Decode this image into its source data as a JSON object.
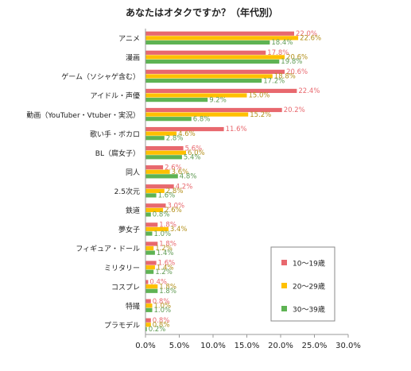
{
  "chart_data": {
    "type": "bar",
    "orientation": "horizontal",
    "title": "あなたはオタクですか？（年代別）",
    "categories": [
      "アニメ",
      "漫画",
      "ゲーム（ソシャゲ含む）",
      "アイドル・声優",
      "動画（YouTuber・Vtuber・実況）",
      "歌い手・ボカロ",
      "BL（腐女子）",
      "同人",
      "2.5次元",
      "鉄道",
      "夢女子",
      "フィギュア・ドール",
      "ミリタリー",
      "コスプレ",
      "特撮",
      "プラモデル"
    ],
    "series": [
      {
        "name": "10～19歳",
        "color": "#e8686e",
        "values": [
          22.0,
          17.8,
          20.6,
          22.4,
          20.2,
          11.6,
          5.6,
          2.6,
          4.2,
          3.0,
          1.8,
          1.8,
          1.6,
          0.4,
          0.8,
          0.8
        ]
      },
      {
        "name": "20～29歳",
        "color": "#ffc000",
        "values": [
          22.6,
          20.6,
          18.8,
          15.0,
          15.2,
          4.6,
          6.0,
          3.6,
          2.8,
          2.6,
          3.4,
          1.2,
          1.4,
          1.8,
          1.0,
          0.8
        ]
      },
      {
        "name": "30～39歳",
        "color": "#5eb353",
        "values": [
          18.4,
          19.8,
          17.2,
          9.2,
          6.8,
          2.8,
          5.4,
          4.8,
          1.6,
          0.8,
          1.0,
          1.4,
          1.2,
          1.8,
          1.0,
          0.2
        ]
      }
    ],
    "labels": [
      [
        "22.0%",
        "17.8%",
        "20.6%",
        "22.4%",
        "20.2%",
        "11.6%",
        "5.6%",
        "2.6%",
        "4.2%",
        "3.0%",
        "1.8%",
        "1.8%",
        "1.6%",
        "0.4%",
        "0.8%",
        "0.8%"
      ],
      [
        "22.6%",
        "20.6%",
        "18.8%",
        "15.0%",
        "15.2%",
        "4.6%",
        "6.0%",
        "3.6%",
        "2.8%",
        "2.6%",
        "3.4%",
        "1.2%",
        "1.4%",
        "1.8%",
        "1.0%",
        "0.8%"
      ],
      [
        "18.4%",
        "19.8%",
        "17.2%",
        "9.2%",
        "6.8%",
        "2.8%",
        "5.4%",
        "4.8%",
        "1.6%",
        "0.8%",
        "1.0%",
        "1.4%",
        "1.2%",
        "1.8%",
        "1.0%",
        "0.2%"
      ]
    ],
    "xlim": [
      0,
      30
    ],
    "xticks": [
      0,
      5,
      10,
      15,
      20,
      25,
      30
    ],
    "xtick_labels": [
      "0.0%",
      "5.0%",
      "10.0%",
      "15.0%",
      "20.0%",
      "25.0%",
      "30.0%"
    ],
    "grid": false,
    "legend": "bottom-right"
  }
}
